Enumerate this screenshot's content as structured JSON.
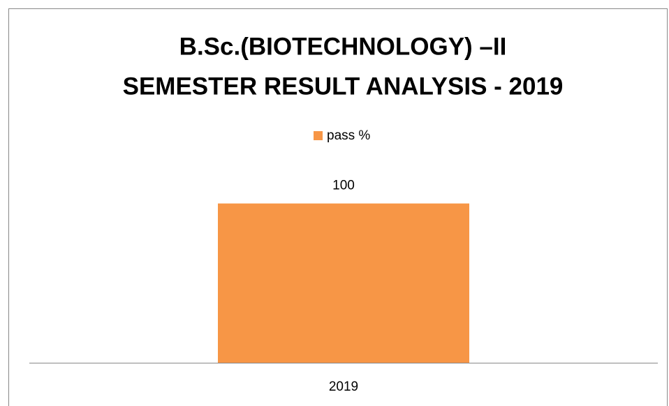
{
  "chart_data": {
    "type": "bar",
    "title": [
      "B.Sc.(BIOTECHNOLOGY) –II",
      "SEMESTER RESULT ANALYSIS - 2019"
    ],
    "categories": [
      "2019"
    ],
    "series": [
      {
        "name": "pass %",
        "color": "#f79646",
        "values": [
          100
        ]
      }
    ],
    "ylim": [
      0,
      120
    ],
    "legend": "top"
  }
}
